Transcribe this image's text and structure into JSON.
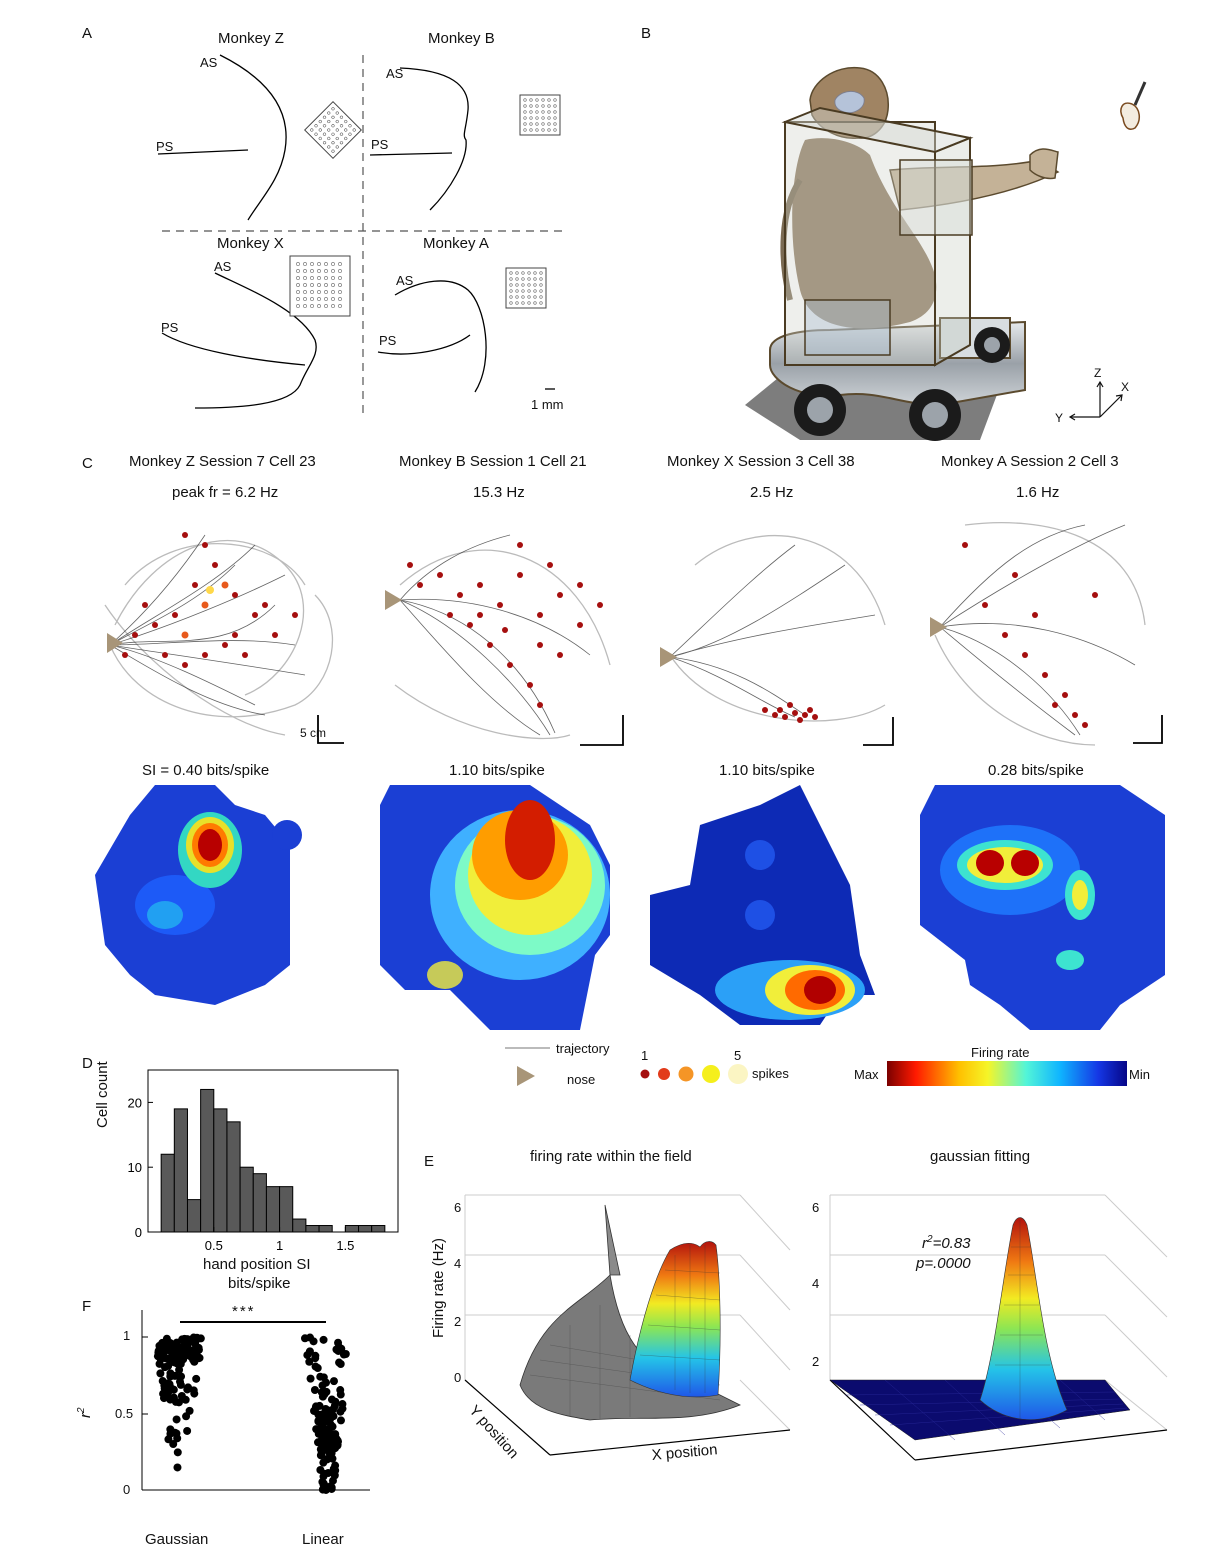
{
  "panels": {
    "A": "A",
    "B": "B",
    "C": "C",
    "D": "D",
    "E": "E",
    "F": "F"
  },
  "panelA": {
    "monkeys": [
      "Monkey Z",
      "Monkey B",
      "Monkey X",
      "Monkey A"
    ],
    "as_label": "AS",
    "ps_label": "PS",
    "scale_label": "1 mm"
  },
  "panelB": {
    "axes": {
      "z": "Z",
      "x": "X",
      "y": "Y"
    }
  },
  "panelC": {
    "cells": [
      {
        "title": "Monkey Z Session 7 Cell 23",
        "peak": "peak fr = 6.2 Hz",
        "si": "SI = 0.40 bits/spike"
      },
      {
        "title": "Monkey B Session 1 Cell 21",
        "peak": "15.3 Hz",
        "si": "1.10 bits/spike"
      },
      {
        "title": "Monkey X Session 3 Cell 38",
        "peak": "2.5 Hz",
        "si": "1.10 bits/spike"
      },
      {
        "title": "Monkey A Session 2 Cell 3",
        "peak": "1.6 Hz",
        "si": "0.28 bits/spike"
      }
    ],
    "scale_label": "5 cm",
    "legend": {
      "trajectory": "trajectory",
      "nose": "nose",
      "spikes": "spikes",
      "spike_min": "1",
      "spike_max": "5",
      "firing_rate": "Firing rate",
      "max": "Max",
      "min": "Min"
    },
    "colors": {
      "spike": "#a50f0f",
      "trajectory": "#333333",
      "nose": "#a89578"
    }
  },
  "chart_data": [
    {
      "type": "bar",
      "panel": "D",
      "xlabel": "hand position SI\nbits/spike",
      "xlabel_line1": "hand position SI",
      "xlabel_line2": "bits/spike",
      "ylabel": "Cell count",
      "xlim": [
        0,
        1.9
      ],
      "ylim": [
        0,
        25
      ],
      "xticks": [
        "0.5",
        "1",
        "1.5"
      ],
      "yticks": [
        "0",
        "10",
        "20"
      ],
      "bin_width": 0.1,
      "x": [
        0.15,
        0.25,
        0.35,
        0.45,
        0.55,
        0.65,
        0.75,
        0.85,
        0.95,
        1.05,
        1.15,
        1.25,
        1.35,
        1.45,
        1.55,
        1.65,
        1.75
      ],
      "values": [
        12,
        19,
        5,
        22,
        19,
        17,
        10,
        9,
        7,
        7,
        2,
        1,
        1,
        0,
        1,
        1,
        1
      ]
    },
    {
      "type": "scatter",
      "panel": "F",
      "categories": [
        "Gaussian",
        "Linear"
      ],
      "ylabel": "r2",
      "ylim": [
        0,
        1
      ],
      "yticks": [
        "0",
        "0.5",
        "1"
      ],
      "significance": "***"
    },
    {
      "type": "surface",
      "panel": "E",
      "title": "firing rate within the field",
      "zlabel": "Firing rate (Hz)",
      "xlabel": "X position",
      "ylabel": "Y position",
      "zticks": [
        "0",
        "2",
        "4",
        "6"
      ]
    },
    {
      "type": "surface",
      "panel": "E",
      "title": "gaussian fitting",
      "zticks": [
        "2",
        "4",
        "6"
      ],
      "r2": "r2=0.83",
      "p": "p=.0000"
    }
  ]
}
